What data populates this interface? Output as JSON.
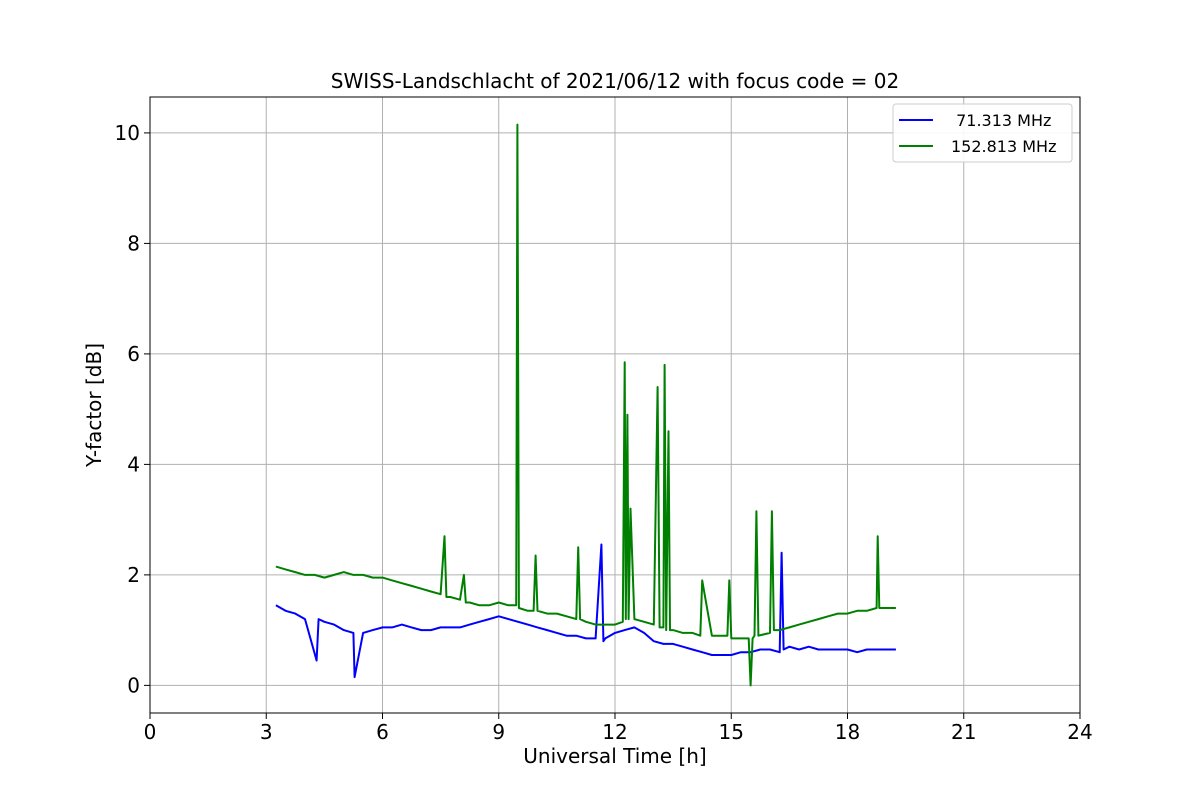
{
  "chart_data": {
    "type": "line",
    "title": "SWISS-Landschlacht of 2021/06/12 with focus code = 02",
    "xlabel": "Universal Time [h]",
    "ylabel": "Y-factor [dB]",
    "xlim": [
      0,
      24
    ],
    "ylim": [
      -0.5,
      10.65
    ],
    "xticks": [
      0,
      3,
      6,
      9,
      12,
      15,
      18,
      21,
      24
    ],
    "yticks": [
      0,
      2,
      4,
      6,
      8,
      10
    ],
    "grid": true,
    "legend_position": "upper-right",
    "series": [
      {
        "name": " 71.313 MHz",
        "color": "#0000ff",
        "x": [
          3.25,
          3.5,
          3.75,
          4.0,
          4.3,
          4.35,
          4.5,
          4.75,
          5.0,
          5.25,
          5.28,
          5.5,
          5.75,
          6.0,
          6.25,
          6.5,
          6.75,
          7.0,
          7.25,
          7.5,
          7.75,
          8.0,
          8.25,
          8.5,
          8.75,
          9.0,
          9.25,
          9.5,
          9.75,
          10.0,
          10.25,
          10.5,
          10.75,
          11.0,
          11.25,
          11.5,
          11.65,
          11.7,
          11.75,
          12.0,
          12.25,
          12.5,
          12.75,
          13.0,
          13.25,
          13.5,
          13.75,
          14.0,
          14.25,
          14.5,
          14.75,
          15.0,
          15.25,
          15.5,
          15.75,
          16.0,
          16.25,
          16.3,
          16.35,
          16.5,
          16.75,
          17.0,
          17.25,
          17.5,
          17.75,
          18.0,
          18.25,
          18.5,
          18.75,
          19.0,
          19.25
        ],
        "y": [
          1.45,
          1.35,
          1.3,
          1.2,
          0.45,
          1.2,
          1.15,
          1.1,
          1.0,
          0.95,
          0.15,
          0.95,
          1.0,
          1.05,
          1.05,
          1.1,
          1.05,
          1.0,
          1.0,
          1.05,
          1.05,
          1.05,
          1.1,
          1.15,
          1.2,
          1.25,
          1.2,
          1.15,
          1.1,
          1.05,
          1.0,
          0.95,
          0.9,
          0.9,
          0.85,
          0.85,
          2.55,
          0.8,
          0.85,
          0.95,
          1.0,
          1.05,
          0.95,
          0.8,
          0.75,
          0.75,
          0.7,
          0.65,
          0.6,
          0.55,
          0.55,
          0.55,
          0.6,
          0.6,
          0.65,
          0.65,
          0.6,
          2.4,
          0.65,
          0.7,
          0.65,
          0.7,
          0.65,
          0.65,
          0.65,
          0.65,
          0.6,
          0.65,
          0.65,
          0.65,
          0.65
        ]
      },
      {
        "name": "152.813 MHz",
        "color": "#008000",
        "x": [
          3.25,
          3.5,
          3.75,
          4.0,
          4.25,
          4.5,
          4.75,
          5.0,
          5.25,
          5.5,
          5.75,
          6.0,
          6.25,
          6.5,
          6.75,
          7.0,
          7.25,
          7.5,
          7.6,
          7.65,
          7.75,
          8.0,
          8.1,
          8.15,
          8.25,
          8.5,
          8.75,
          9.0,
          9.25,
          9.45,
          9.48,
          9.52,
          9.75,
          9.9,
          9.95,
          10.0,
          10.25,
          10.5,
          10.75,
          11.0,
          11.05,
          11.1,
          11.25,
          11.5,
          11.75,
          12.0,
          12.2,
          12.25,
          12.28,
          12.32,
          12.35,
          12.4,
          12.5,
          12.75,
          13.0,
          13.1,
          13.15,
          13.25,
          13.28,
          13.32,
          13.38,
          13.42,
          13.5,
          13.75,
          14.0,
          14.2,
          14.25,
          14.5,
          14.75,
          14.9,
          14.95,
          15.0,
          15.25,
          15.45,
          15.5,
          15.55,
          15.6,
          15.65,
          15.7,
          16.0,
          16.05,
          16.1,
          16.25,
          16.5,
          16.75,
          17.0,
          17.25,
          17.5,
          17.75,
          18.0,
          18.25,
          18.5,
          18.75,
          18.78,
          18.82,
          19.0,
          19.25
        ],
        "y": [
          2.15,
          2.1,
          2.05,
          2.0,
          2.0,
          1.95,
          2.0,
          2.05,
          2.0,
          2.0,
          1.95,
          1.95,
          1.9,
          1.85,
          1.8,
          1.75,
          1.7,
          1.65,
          2.7,
          1.6,
          1.6,
          1.55,
          2.0,
          1.5,
          1.5,
          1.45,
          1.45,
          1.5,
          1.45,
          1.45,
          10.15,
          1.4,
          1.35,
          1.35,
          2.35,
          1.35,
          1.3,
          1.3,
          1.25,
          1.2,
          2.5,
          1.2,
          1.15,
          1.1,
          1.1,
          1.1,
          1.15,
          5.85,
          1.2,
          4.9,
          1.2,
          3.2,
          1.2,
          1.15,
          1.1,
          5.4,
          1.05,
          1.05,
          5.8,
          1.0,
          4.6,
          1.0,
          1.0,
          0.95,
          0.95,
          0.9,
          1.9,
          0.9,
          0.9,
          0.9,
          1.9,
          0.85,
          0.85,
          0.85,
          0.0,
          0.85,
          0.9,
          3.15,
          0.9,
          0.95,
          3.15,
          1.0,
          1.0,
          1.05,
          1.1,
          1.15,
          1.2,
          1.25,
          1.3,
          1.3,
          1.35,
          1.35,
          1.4,
          2.7,
          1.4,
          1.4,
          1.4
        ]
      }
    ]
  }
}
